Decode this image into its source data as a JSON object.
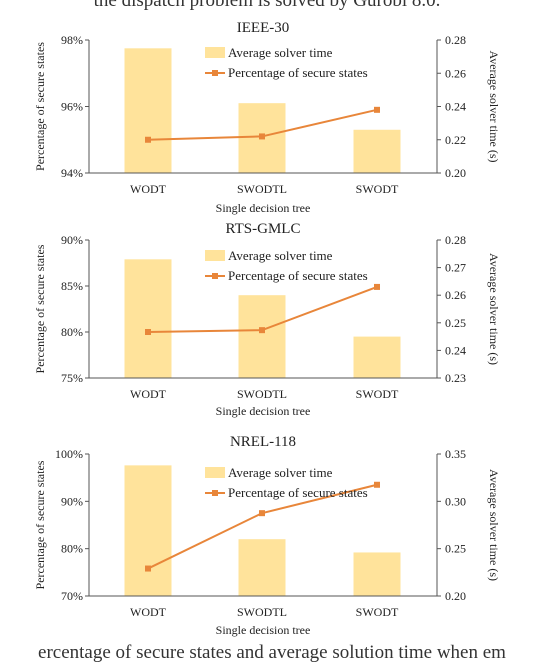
{
  "top_text": "the dispatch problem is solved by Gurobi 8.0.",
  "bottom_text": "ercentage of secure states and average solution time when em",
  "colors": {
    "bar": "#FFE39B",
    "line": "#E8863A"
  },
  "chart_data": [
    {
      "type": "bar+line",
      "title": "IEEE-30",
      "categories": [
        "WODT",
        "SWODTL",
        "SWODT"
      ],
      "xlabel": "Single decision tree",
      "ylabel_left": "Percentage of secure states",
      "ylabel_right": "Average solver time (s)",
      "left_ticks": [
        "94%",
        "96%",
        "98%"
      ],
      "right_ticks": [
        "0.20",
        "0.22",
        "0.24",
        "0.26",
        "0.28"
      ],
      "left_range": [
        94,
        98
      ],
      "right_range": [
        0.2,
        0.28
      ],
      "series": [
        {
          "name": "Average solver time",
          "kind": "bar",
          "axis": "right",
          "values": [
            0.275,
            0.242,
            0.226
          ]
        },
        {
          "name": "Percentage of secure states",
          "kind": "line",
          "axis": "left",
          "values": [
            95.0,
            95.1,
            95.9
          ]
        }
      ],
      "legend": "top-right"
    },
    {
      "type": "bar+line",
      "title": "RTS-GMLC",
      "categories": [
        "WODT",
        "SWODTL",
        "SWODT"
      ],
      "xlabel": "Single decision tree",
      "ylabel_left": "Percentage of secure states",
      "ylabel_right": "Average solver time (s)",
      "left_ticks": [
        "75%",
        "80%",
        "85%",
        "90%"
      ],
      "right_ticks": [
        "0.23",
        "0.24",
        "0.25",
        "0.26",
        "0.27",
        "0.28"
      ],
      "left_range": [
        75,
        90
      ],
      "right_range": [
        0.23,
        0.28
      ],
      "series": [
        {
          "name": "Average solver time",
          "kind": "bar",
          "axis": "right",
          "values": [
            0.273,
            0.26,
            0.245
          ]
        },
        {
          "name": "Percentage of secure states",
          "kind": "line",
          "axis": "left",
          "values": [
            80.0,
            80.2,
            84.9
          ]
        }
      ],
      "legend": "top-right"
    },
    {
      "type": "bar+line",
      "title": "NREL-118",
      "categories": [
        "WODT",
        "SWODTL",
        "SWODT"
      ],
      "xlabel": "Single decision tree",
      "ylabel_left": "Percentage of secure states",
      "ylabel_right": "Average solver time (s)",
      "left_ticks": [
        "70%",
        "80%",
        "90%",
        "100%"
      ],
      "right_ticks": [
        "0.20",
        "0.25",
        "0.30",
        "0.35"
      ],
      "left_range": [
        70,
        100
      ],
      "right_range": [
        0.2,
        0.35
      ],
      "series": [
        {
          "name": "Average solver time",
          "kind": "bar",
          "axis": "right",
          "values": [
            0.338,
            0.26,
            0.246
          ]
        },
        {
          "name": "Percentage of secure states",
          "kind": "line",
          "axis": "left",
          "values": [
            75.8,
            87.5,
            93.5
          ]
        }
      ],
      "legend": "top-right"
    }
  ]
}
